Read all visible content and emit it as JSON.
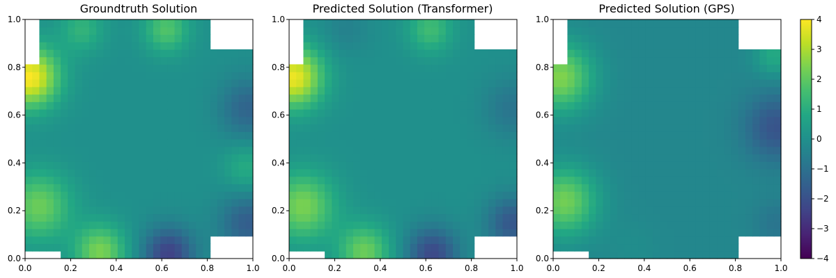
{
  "chart_data": [
    {
      "type": "heatmap",
      "title": "Groundtruth Solution",
      "xlim": [
        0,
        1
      ],
      "ylim": [
        0,
        1
      ],
      "xticks": [
        "0.0",
        "0.2",
        "0.4",
        "0.6",
        "0.8",
        "1.0"
      ],
      "yticks": [
        "0.0",
        "0.2",
        "0.4",
        "0.6",
        "0.8",
        "1.0"
      ],
      "grid": false,
      "grid_size": 32,
      "value_range": [
        -4,
        4
      ],
      "missing_regions": [
        {
          "x": [
            0.0,
            0.06
          ],
          "y": [
            0.81,
            1.0
          ]
        },
        {
          "x": [
            0.81,
            1.0
          ],
          "y": [
            0.88,
            1.0
          ]
        },
        {
          "x": [
            0.0,
            0.16
          ],
          "y": [
            0.0,
            0.03
          ]
        },
        {
          "x": [
            0.81,
            1.0
          ],
          "y": [
            0.0,
            0.09
          ]
        }
      ],
      "features": [
        {
          "x": 0.02,
          "y": 0.76,
          "value": 4.0,
          "spread": 0.09
        },
        {
          "x": 0.06,
          "y": 0.22,
          "value": 2.2,
          "spread": 0.1
        },
        {
          "x": 0.33,
          "y": 0.03,
          "value": 2.4,
          "spread": 0.08
        },
        {
          "x": 0.63,
          "y": 0.02,
          "value": -2.4,
          "spread": 0.08
        },
        {
          "x": 0.98,
          "y": 0.63,
          "value": -1.4,
          "spread": 0.09
        },
        {
          "x": 0.98,
          "y": 0.15,
          "value": -1.6,
          "spread": 0.09
        },
        {
          "x": 0.62,
          "y": 0.96,
          "value": 1.8,
          "spread": 0.07
        },
        {
          "x": 0.25,
          "y": 0.96,
          "value": 1.2,
          "spread": 0.07
        },
        {
          "x": 0.97,
          "y": 0.38,
          "value": 1.0,
          "spread": 0.07
        }
      ]
    },
    {
      "type": "heatmap",
      "title": "Predicted Solution (Transformer)",
      "xlim": [
        0,
        1
      ],
      "ylim": [
        0,
        1
      ],
      "xticks": [
        "0.0",
        "0.2",
        "0.4",
        "0.6",
        "0.8",
        "1.0"
      ],
      "yticks": [
        "0.0",
        "0.2",
        "0.4",
        "0.6",
        "0.8",
        "1.0"
      ],
      "grid": false,
      "grid_size": 32,
      "value_range": [
        -4,
        4
      ],
      "missing_regions": [
        {
          "x": [
            0.0,
            0.06
          ],
          "y": [
            0.81,
            1.0
          ]
        },
        {
          "x": [
            0.81,
            1.0
          ],
          "y": [
            0.88,
            1.0
          ]
        },
        {
          "x": [
            0.0,
            0.16
          ],
          "y": [
            0.0,
            0.03
          ]
        },
        {
          "x": [
            0.81,
            1.0
          ],
          "y": [
            0.0,
            0.09
          ]
        }
      ],
      "features": [
        {
          "x": 0.02,
          "y": 0.76,
          "value": 3.8,
          "spread": 0.09
        },
        {
          "x": 0.06,
          "y": 0.22,
          "value": 2.4,
          "spread": 0.1
        },
        {
          "x": 0.33,
          "y": 0.03,
          "value": 2.2,
          "spread": 0.08
        },
        {
          "x": 0.63,
          "y": 0.02,
          "value": -2.2,
          "spread": 0.08
        },
        {
          "x": 0.98,
          "y": 0.63,
          "value": -0.9,
          "spread": 0.09
        },
        {
          "x": 0.98,
          "y": 0.15,
          "value": -1.8,
          "spread": 0.08
        },
        {
          "x": 0.62,
          "y": 0.96,
          "value": 1.5,
          "spread": 0.07
        },
        {
          "x": 0.25,
          "y": 0.96,
          "value": -0.5,
          "spread": 0.07
        }
      ]
    },
    {
      "type": "heatmap",
      "title": "Predicted Solution (GPS)",
      "xlim": [
        0,
        1
      ],
      "ylim": [
        0,
        1
      ],
      "xticks": [
        "0.0",
        "0.2",
        "0.4",
        "0.6",
        "0.8",
        "1.0"
      ],
      "yticks": [
        "0.0",
        "0.2",
        "0.4",
        "0.6",
        "0.8",
        "1.0"
      ],
      "grid": false,
      "grid_size": 32,
      "value_range": [
        -4,
        4
      ],
      "missing_regions": [
        {
          "x": [
            0.0,
            0.06
          ],
          "y": [
            0.81,
            1.0
          ]
        },
        {
          "x": [
            0.81,
            1.0
          ],
          "y": [
            0.88,
            1.0
          ]
        },
        {
          "x": [
            0.0,
            0.16
          ],
          "y": [
            0.0,
            0.03
          ]
        },
        {
          "x": [
            0.81,
            1.0
          ],
          "y": [
            0.0,
            0.09
          ]
        }
      ],
      "base_value": -0.3,
      "features": [
        {
          "x": 0.03,
          "y": 0.76,
          "value": 2.8,
          "spread": 0.1
        },
        {
          "x": 0.05,
          "y": 0.24,
          "value": 2.6,
          "spread": 0.1
        },
        {
          "x": 0.98,
          "y": 0.55,
          "value": -1.6,
          "spread": 0.1
        },
        {
          "x": 0.97,
          "y": 0.85,
          "value": 1.2,
          "spread": 0.06
        },
        {
          "x": 0.35,
          "y": 0.05,
          "value": 0.2,
          "spread": 0.08
        },
        {
          "x": 0.98,
          "y": 0.15,
          "value": -0.6,
          "spread": 0.07
        }
      ]
    }
  ],
  "colorbar": {
    "colormap": "viridis",
    "range": [
      -4,
      4
    ],
    "ticks": [
      "−4",
      "−3",
      "−2",
      "−1",
      "0",
      "1",
      "2",
      "3",
      "4"
    ]
  }
}
